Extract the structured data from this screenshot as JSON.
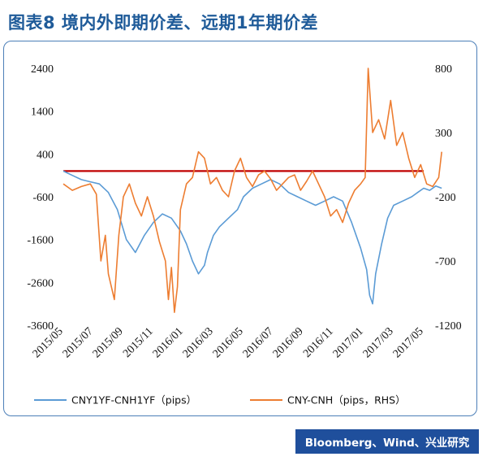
{
  "title": "图表8  境内外即期价差、远期1年期价差",
  "source": "Bloomberg、Wind、兴业研究",
  "colors": {
    "blue": "#5b9bd5",
    "orange": "#ed7d31",
    "red": "#c00000",
    "accent": "#1f4f9c"
  },
  "chart_data": {
    "type": "line",
    "title": "",
    "x_labels": [
      "2015/05",
      "2015/07",
      "2015/09",
      "2015/11",
      "2016/01",
      "2016/03",
      "2016/05",
      "2016/07",
      "2016/09",
      "2016/11",
      "2017/01",
      "2017/03",
      "2017/05"
    ],
    "ylim_left": [
      -3600,
      2400
    ],
    "yticks_left": [
      "2400",
      "1400",
      "400",
      "-600",
      "-1600",
      "-2600",
      "-3600"
    ],
    "ylim_right": [
      -1200,
      800
    ],
    "yticks_right": [
      "800",
      "300",
      "-200",
      "-700",
      "-1200"
    ],
    "reference_line": {
      "axis": "left",
      "value": 0
    },
    "series": [
      {
        "name": "CNY1YF-CNH1YF（pips）",
        "axis": "left",
        "color": "#5b9bd5",
        "points": [
          [
            0,
            0
          ],
          [
            0.3,
            -100
          ],
          [
            0.6,
            -200
          ],
          [
            0.9,
            -250
          ],
          [
            1.2,
            -300
          ],
          [
            1.5,
            -500
          ],
          [
            1.8,
            -900
          ],
          [
            2.1,
            -1600
          ],
          [
            2.4,
            -1900
          ],
          [
            2.7,
            -1500
          ],
          [
            3.0,
            -1200
          ],
          [
            3.3,
            -1000
          ],
          [
            3.6,
            -1100
          ],
          [
            3.9,
            -1400
          ],
          [
            4.1,
            -1700
          ],
          [
            4.3,
            -2100
          ],
          [
            4.5,
            -2400
          ],
          [
            4.7,
            -2200
          ],
          [
            4.8,
            -1900
          ],
          [
            5.0,
            -1500
          ],
          [
            5.2,
            -1300
          ],
          [
            5.5,
            -1100
          ],
          [
            5.8,
            -900
          ],
          [
            6.0,
            -600
          ],
          [
            6.3,
            -400
          ],
          [
            6.6,
            -300
          ],
          [
            6.9,
            -200
          ],
          [
            7.2,
            -300
          ],
          [
            7.5,
            -500
          ],
          [
            7.8,
            -600
          ],
          [
            8.1,
            -700
          ],
          [
            8.4,
            -800
          ],
          [
            8.7,
            -700
          ],
          [
            9.0,
            -600
          ],
          [
            9.3,
            -700
          ],
          [
            9.6,
            -1200
          ],
          [
            9.9,
            -1800
          ],
          [
            10.1,
            -2300
          ],
          [
            10.2,
            -2900
          ],
          [
            10.3,
            -3100
          ],
          [
            10.4,
            -2400
          ],
          [
            10.6,
            -1700
          ],
          [
            10.8,
            -1100
          ],
          [
            11.0,
            -800
          ],
          [
            11.3,
            -700
          ],
          [
            11.6,
            -600
          ],
          [
            11.8,
            -500
          ],
          [
            12.0,
            -400
          ],
          [
            12.2,
            -450
          ],
          [
            12.4,
            -350
          ],
          [
            12.6,
            -400
          ]
        ]
      },
      {
        "name": "CNY-CNH（pips，RHS）",
        "axis": "right",
        "color": "#ed7d31",
        "points": [
          [
            0,
            -100
          ],
          [
            0.3,
            -150
          ],
          [
            0.6,
            -120
          ],
          [
            0.9,
            -100
          ],
          [
            1.1,
            -180
          ],
          [
            1.25,
            -700
          ],
          [
            1.4,
            -500
          ],
          [
            1.5,
            -800
          ],
          [
            1.7,
            -1000
          ],
          [
            1.85,
            -500
          ],
          [
            2.0,
            -200
          ],
          [
            2.2,
            -100
          ],
          [
            2.4,
            -250
          ],
          [
            2.6,
            -350
          ],
          [
            2.8,
            -200
          ],
          [
            3.0,
            -350
          ],
          [
            3.2,
            -550
          ],
          [
            3.4,
            -700
          ],
          [
            3.5,
            -1000
          ],
          [
            3.6,
            -750
          ],
          [
            3.7,
            -1100
          ],
          [
            3.8,
            -900
          ],
          [
            3.9,
            -300
          ],
          [
            4.1,
            -100
          ],
          [
            4.3,
            -50
          ],
          [
            4.5,
            150
          ],
          [
            4.7,
            100
          ],
          [
            4.9,
            -100
          ],
          [
            5.1,
            -50
          ],
          [
            5.3,
            -150
          ],
          [
            5.5,
            -200
          ],
          [
            5.7,
            0
          ],
          [
            5.9,
            100
          ],
          [
            6.1,
            -50
          ],
          [
            6.3,
            -120
          ],
          [
            6.5,
            -30
          ],
          [
            6.7,
            0
          ],
          [
            6.9,
            -60
          ],
          [
            7.1,
            -150
          ],
          [
            7.3,
            -100
          ],
          [
            7.5,
            -50
          ],
          [
            7.7,
            -30
          ],
          [
            7.9,
            -150
          ],
          [
            8.1,
            -80
          ],
          [
            8.3,
            0
          ],
          [
            8.5,
            -100
          ],
          [
            8.7,
            -200
          ],
          [
            8.9,
            -350
          ],
          [
            9.1,
            -300
          ],
          [
            9.3,
            -400
          ],
          [
            9.5,
            -250
          ],
          [
            9.7,
            -150
          ],
          [
            9.9,
            -100
          ],
          [
            10.05,
            -50
          ],
          [
            10.15,
            800
          ],
          [
            10.3,
            300
          ],
          [
            10.5,
            400
          ],
          [
            10.7,
            250
          ],
          [
            10.9,
            550
          ],
          [
            11.1,
            200
          ],
          [
            11.3,
            300
          ],
          [
            11.5,
            100
          ],
          [
            11.7,
            -50
          ],
          [
            11.9,
            50
          ],
          [
            12.1,
            -100
          ],
          [
            12.3,
            -120
          ],
          [
            12.5,
            -50
          ],
          [
            12.6,
            150
          ]
        ]
      }
    ]
  }
}
